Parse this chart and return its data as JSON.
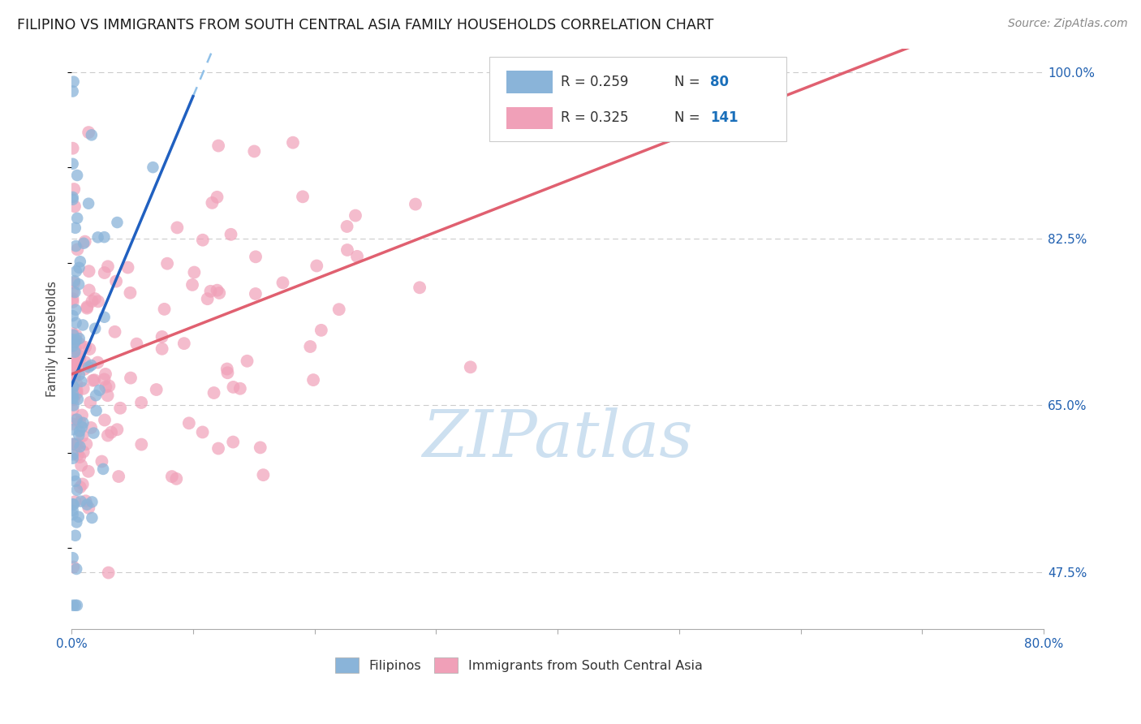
{
  "title": "FILIPINO VS IMMIGRANTS FROM SOUTH CENTRAL ASIA FAMILY HOUSEHOLDS CORRELATION CHART",
  "source": "Source: ZipAtlas.com",
  "ylabel": "Family Households",
  "xlim": [
    0.0,
    0.8
  ],
  "ylim": [
    0.415,
    1.025
  ],
  "ytick_positions": [
    0.475,
    0.65,
    0.825,
    1.0
  ],
  "ytick_labels": [
    "47.5%",
    "65.0%",
    "82.5%",
    "100.0%"
  ],
  "xtick_positions": [
    0.0,
    0.1,
    0.2,
    0.3,
    0.4,
    0.5,
    0.6,
    0.7,
    0.8
  ],
  "xtick_labels_shown": {
    "0.0": "0.0%",
    "0.80": "80.0%"
  },
  "r_filipino": 0.259,
  "n_filipino": 80,
  "r_asia": 0.325,
  "n_asia": 141,
  "color_filipino": "#8ab4d9",
  "color_asia": "#f0a0b8",
  "color_line_filipino": "#2060c0",
  "color_line_asia": "#e06070",
  "color_dashed": "#90c0e8",
  "legend_color": "#1a6fba",
  "title_color": "#1a1a1a",
  "source_color": "#888888",
  "axis_label_color": "#444444",
  "tick_color_y": "#2060b0",
  "tick_color_x": "#2060b0",
  "watermark_text": "ZIPatlas",
  "watermark_color": "#cde0f0",
  "grid_color": "#cccccc",
  "spine_color": "#aaaaaa"
}
